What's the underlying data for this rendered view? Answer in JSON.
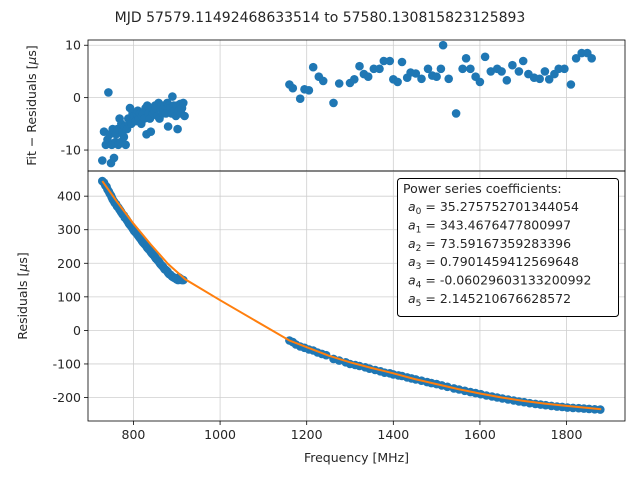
{
  "chart_data": {
    "title": "MJD 57579.11492468633514 to 57580.130815823125893",
    "type": "scatter",
    "xlabel": "Frequency [MHz]",
    "xlim": [
      695,
      1935
    ],
    "xticks": [
      800,
      1000,
      1200,
      1400,
      1600,
      1800
    ],
    "top_panel": {
      "ylabel": "Fit − Residuals [μs]",
      "ylabel_parts": [
        "Fit − Residuals [",
        "μ",
        "s]"
      ],
      "ylim": [
        -14,
        11
      ],
      "yticks": [
        10,
        0,
        -10
      ],
      "grid": true,
      "points": [
        [
          728,
          -12
        ],
        [
          732,
          -6.5
        ],
        [
          736,
          -9
        ],
        [
          740,
          -8
        ],
        [
          742,
          1
        ],
        [
          745,
          -7
        ],
        [
          748,
          -12.5
        ],
        [
          750,
          -9
        ],
        [
          752,
          -6
        ],
        [
          755,
          -11.5
        ],
        [
          758,
          -8.5
        ],
        [
          760,
          -7
        ],
        [
          763,
          -6
        ],
        [
          765,
          -9
        ],
        [
          768,
          -4
        ],
        [
          770,
          -8.5
        ],
        [
          772,
          -5
        ],
        [
          775,
          -6.5
        ],
        [
          778,
          -7.5
        ],
        [
          780,
          -5.5
        ],
        [
          782,
          -9
        ],
        [
          785,
          -6
        ],
        [
          788,
          -4
        ],
        [
          790,
          -5
        ],
        [
          792,
          -2
        ],
        [
          795,
          -5
        ],
        [
          798,
          -3
        ],
        [
          800,
          -4
        ],
        [
          802,
          -3.5
        ],
        [
          805,
          -4.5
        ],
        [
          808,
          -3
        ],
        [
          810,
          -2.5
        ],
        [
          813,
          -4
        ],
        [
          815,
          -3
        ],
        [
          818,
          -5
        ],
        [
          820,
          -3.5
        ],
        [
          822,
          -3
        ],
        [
          825,
          -4
        ],
        [
          828,
          -2
        ],
        [
          830,
          -7
        ],
        [
          832,
          -1.5
        ],
        [
          835,
          -3
        ],
        [
          838,
          -4
        ],
        [
          840,
          -6.5
        ],
        [
          842,
          -2
        ],
        [
          845,
          -3
        ],
        [
          848,
          -2.5
        ],
        [
          850,
          -1.5
        ],
        [
          852,
          -2
        ],
        [
          855,
          -3.5
        ],
        [
          858,
          -1
        ],
        [
          860,
          -4
        ],
        [
          862,
          -2
        ],
        [
          865,
          -1.5
        ],
        [
          868,
          -3
        ],
        [
          870,
          -2
        ],
        [
          872,
          -1.5
        ],
        [
          875,
          -3
        ],
        [
          878,
          -1
        ],
        [
          880,
          -5.5
        ],
        [
          882,
          -1.5
        ],
        [
          885,
          -2
        ],
        [
          888,
          -3
        ],
        [
          890,
          0.2
        ],
        [
          893,
          -1.5
        ],
        [
          895,
          -2.5
        ],
        [
          898,
          -3.5
        ],
        [
          900,
          -1.5
        ],
        [
          902,
          -6
        ],
        [
          905,
          -2.5
        ],
        [
          908,
          -1.2
        ],
        [
          910,
          -3
        ],
        [
          912,
          -2
        ],
        [
          915,
          -1
        ],
        [
          918,
          -3.5
        ],
        [
          1160,
          2.5
        ],
        [
          1168,
          1.8
        ],
        [
          1185,
          -0.2
        ],
        [
          1195,
          1.6
        ],
        [
          1205,
          1.4
        ],
        [
          1215,
          5.8
        ],
        [
          1228,
          4
        ],
        [
          1238,
          3.2
        ],
        [
          1262,
          -1
        ],
        [
          1275,
          2.7
        ],
        [
          1300,
          2.8
        ],
        [
          1310,
          3.5
        ],
        [
          1322,
          6
        ],
        [
          1332,
          4.5
        ],
        [
          1342,
          4
        ],
        [
          1355,
          5.5
        ],
        [
          1368,
          5.5
        ],
        [
          1378,
          7
        ],
        [
          1392,
          7
        ],
        [
          1400,
          3.5
        ],
        [
          1410,
          3
        ],
        [
          1420,
          6.8
        ],
        [
          1432,
          3.8
        ],
        [
          1440,
          4.8
        ],
        [
          1452,
          4.6
        ],
        [
          1465,
          3.6
        ],
        [
          1480,
          5.5
        ],
        [
          1490,
          4.2
        ],
        [
          1500,
          4
        ],
        [
          1510,
          5.5
        ],
        [
          1515,
          10
        ],
        [
          1528,
          3.6
        ],
        [
          1545,
          -3
        ],
        [
          1560,
          5.5
        ],
        [
          1568,
          7.5
        ],
        [
          1578,
          5.5
        ],
        [
          1590,
          4
        ],
        [
          1600,
          3
        ],
        [
          1612,
          7.8
        ],
        [
          1625,
          5
        ],
        [
          1640,
          5.5
        ],
        [
          1650,
          5
        ],
        [
          1662,
          3.3
        ],
        [
          1675,
          6.2
        ],
        [
          1690,
          5
        ],
        [
          1700,
          7
        ],
        [
          1712,
          4.5
        ],
        [
          1725,
          3.8
        ],
        [
          1738,
          3.6
        ],
        [
          1750,
          5
        ],
        [
          1760,
          3.5
        ],
        [
          1772,
          4.5
        ],
        [
          1782,
          5.5
        ],
        [
          1795,
          5.5
        ],
        [
          1810,
          2.5
        ],
        [
          1822,
          7.5
        ],
        [
          1835,
          8.5
        ],
        [
          1848,
          8.5
        ],
        [
          1858,
          7.5
        ]
      ]
    },
    "bottom_panel": {
      "ylabel": "Residuals [μs]",
      "ylabel_parts": [
        "Residuals [",
        "μ",
        "s]"
      ],
      "ylim": [
        -270,
        475
      ],
      "yticks": [
        400,
        300,
        200,
        100,
        0,
        -100,
        -200
      ],
      "grid": true,
      "fit_color": "#ff7f0e",
      "point_color": "#1f77b4",
      "legend": {
        "placement": "upper-right",
        "heading": "Power series coefficients:",
        "entries": [
          {
            "sym": "a",
            "sub": "0",
            "value": " = 35.275752701344054"
          },
          {
            "sym": "a",
            "sub": "1",
            "value": " = 343.4676477800997"
          },
          {
            "sym": "a",
            "sub": "2",
            "value": " = 73.59167359283396"
          },
          {
            "sym": "a",
            "sub": "3",
            "value": " = 0.7901459412569648"
          },
          {
            "sym": "a",
            "sub": "4",
            "value": " = -0.06029603133200992"
          },
          {
            "sym": "a",
            "sub": "5",
            "value": " = 2.145210676628572"
          }
        ]
      },
      "fit_line": [
        [
          728,
          445
        ],
        [
          760,
          387
        ],
        [
          800,
          318
        ],
        [
          840,
          256
        ],
        [
          880,
          198
        ],
        [
          920,
          152
        ],
        [
          1000,
          90
        ],
        [
          1100,
          15
        ],
        [
          1160,
          -30
        ],
        [
          1200,
          -50
        ],
        [
          1250,
          -75
        ],
        [
          1300,
          -95
        ],
        [
          1350,
          -112
        ],
        [
          1400,
          -128
        ],
        [
          1450,
          -145
        ],
        [
          1500,
          -160
        ],
        [
          1550,
          -175
        ],
        [
          1600,
          -188
        ],
        [
          1650,
          -200
        ],
        [
          1700,
          -210
        ],
        [
          1750,
          -218
        ],
        [
          1800,
          -225
        ],
        [
          1880,
          -235
        ]
      ],
      "points": [
        [
          728,
          445
        ],
        [
          732,
          440
        ],
        [
          735,
          432
        ],
        [
          738,
          428
        ],
        [
          740,
          420
        ],
        [
          743,
          414
        ],
        [
          745,
          408
        ],
        [
          748,
          402
        ],
        [
          750,
          396
        ],
        [
          752,
          390
        ],
        [
          755,
          384
        ],
        [
          757,
          380
        ],
        [
          760,
          376
        ],
        [
          762,
          370
        ],
        [
          765,
          366
        ],
        [
          768,
          360
        ],
        [
          770,
          356
        ],
        [
          772,
          352
        ],
        [
          775,
          346
        ],
        [
          778,
          342
        ],
        [
          780,
          336
        ],
        [
          782,
          334
        ],
        [
          785,
          328
        ],
        [
          788,
          322
        ],
        [
          790,
          318
        ],
        [
          792,
          314
        ],
        [
          795,
          310
        ],
        [
          798,
          304
        ],
        [
          800,
          300
        ],
        [
          802,
          296
        ],
        [
          805,
          292
        ],
        [
          808,
          288
        ],
        [
          810,
          284
        ],
        [
          812,
          280
        ],
        [
          815,
          275
        ],
        [
          818,
          270
        ],
        [
          820,
          266
        ],
        [
          822,
          262
        ],
        [
          825,
          258
        ],
        [
          828,
          254
        ],
        [
          830,
          250
        ],
        [
          832,
          246
        ],
        [
          835,
          242
        ],
        [
          838,
          238
        ],
        [
          840,
          234
        ],
        [
          842,
          230
        ],
        [
          845,
          226
        ],
        [
          848,
          222
        ],
        [
          850,
          218
        ],
        [
          852,
          214
        ],
        [
          855,
          210
        ],
        [
          858,
          206
        ],
        [
          860,
          202
        ],
        [
          862,
          198
        ],
        [
          865,
          194
        ],
        [
          868,
          190
        ],
        [
          870,
          186
        ],
        [
          872,
          182
        ],
        [
          875,
          180
        ],
        [
          878,
          176
        ],
        [
          880,
          172
        ],
        [
          882,
          168
        ],
        [
          885,
          166
        ],
        [
          888,
          162
        ],
        [
          890,
          160
        ],
        [
          893,
          158
        ],
        [
          895,
          156
        ],
        [
          898,
          154
        ],
        [
          900,
          152
        ],
        [
          903,
          150
        ],
        [
          905,
          158
        ],
        [
          908,
          155
        ],
        [
          910,
          152
        ],
        [
          912,
          150
        ],
        [
          915,
          150
        ],
        [
          1160,
          -30
        ],
        [
          1168,
          -35
        ],
        [
          1175,
          -42
        ],
        [
          1185,
          -48
        ],
        [
          1195,
          -52
        ],
        [
          1205,
          -57
        ],
        [
          1215,
          -60
        ],
        [
          1225,
          -66
        ],
        [
          1235,
          -70
        ],
        [
          1245,
          -74
        ],
        [
          1262,
          -85
        ],
        [
          1275,
          -90
        ],
        [
          1290,
          -95
        ],
        [
          1300,
          -100
        ],
        [
          1312,
          -103
        ],
        [
          1322,
          -106
        ],
        [
          1335,
          -110
        ],
        [
          1345,
          -114
        ],
        [
          1358,
          -118
        ],
        [
          1370,
          -122
        ],
        [
          1380,
          -126
        ],
        [
          1392,
          -128
        ],
        [
          1400,
          -131
        ],
        [
          1412,
          -134
        ],
        [
          1420,
          -136
        ],
        [
          1432,
          -140
        ],
        [
          1442,
          -143
        ],
        [
          1452,
          -146
        ],
        [
          1465,
          -150
        ],
        [
          1478,
          -154
        ],
        [
          1488,
          -157
        ],
        [
          1500,
          -160
        ],
        [
          1512,
          -164
        ],
        [
          1525,
          -168
        ],
        [
          1540,
          -173
        ],
        [
          1552,
          -176
        ],
        [
          1565,
          -180
        ],
        [
          1578,
          -184
        ],
        [
          1590,
          -187
        ],
        [
          1602,
          -190
        ],
        [
          1615,
          -194
        ],
        [
          1628,
          -197
        ],
        [
          1640,
          -200
        ],
        [
          1652,
          -203
        ],
        [
          1665,
          -206
        ],
        [
          1678,
          -209
        ],
        [
          1690,
          -212
        ],
        [
          1702,
          -214
        ],
        [
          1715,
          -217
        ],
        [
          1728,
          -219
        ],
        [
          1740,
          -221
        ],
        [
          1752,
          -223
        ],
        [
          1765,
          -225
        ],
        [
          1778,
          -227
        ],
        [
          1790,
          -228
        ],
        [
          1802,
          -230
        ],
        [
          1815,
          -231
        ],
        [
          1828,
          -232
        ],
        [
          1840,
          -233
        ],
        [
          1852,
          -234
        ],
        [
          1865,
          -235
        ],
        [
          1878,
          -236
        ]
      ]
    }
  }
}
